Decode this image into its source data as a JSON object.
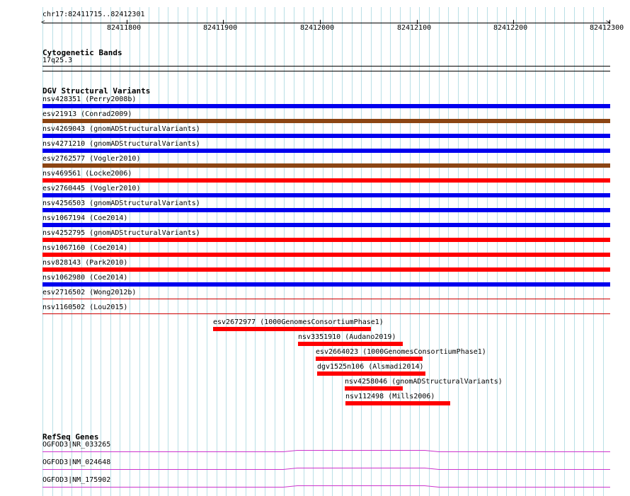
{
  "ruler": {
    "range_label": "chr17:82411715..82412301",
    "ticks": [
      "82411800",
      "82411900",
      "82412000",
      "82412100",
      "82412200",
      "82412300"
    ]
  },
  "cytoband": {
    "title": "Cytogenetic Bands",
    "band": "17q25.3"
  },
  "dgv": {
    "title": "DGV Structural Variants",
    "full_width": [
      {
        "label": "nsv428351 (Perry2008b)",
        "color": "#0000ee"
      },
      {
        "label": "esv21913 (Conrad2009)",
        "color": "#8b4513"
      },
      {
        "label": "nsv4269043 (gnomADStructuralVariants)",
        "color": "#0000ee"
      },
      {
        "label": "nsv4271210 (gnomADStructuralVariants)",
        "color": "#0000ee"
      },
      {
        "label": "esv2762577 (Vogler2010)",
        "color": "#8b4513"
      },
      {
        "label": "nsv469561 (Locke2006)",
        "color": "#ff0000"
      },
      {
        "label": "esv2760445 (Vogler2010)",
        "color": "#0000ee"
      },
      {
        "label": "nsv4256503 (gnomADStructuralVariants)",
        "color": "#0000ee"
      },
      {
        "label": "nsv1067194 (Coe2014)",
        "color": "#0000ee"
      },
      {
        "label": "nsv4252795 (gnomADStructuralVariants)",
        "color": "#ff0000"
      },
      {
        "label": "nsv1067160 (Coe2014)",
        "color": "#ff0000"
      },
      {
        "label": "nsv828143 (Park2010)",
        "color": "#ff0000"
      },
      {
        "label": "nsv1062980 (Coe2014)",
        "color": "#0000ee"
      },
      {
        "label": "esv2716502 (Wong2012b)",
        "color": "#cc0000"
      },
      {
        "label": "nsv1160502 (Lou2015)",
        "color": "#cc0000"
      }
    ],
    "partial": [
      {
        "label": "esv2672977 (1000GenomesConsortiumPhase1)",
        "color": "#ff0000"
      },
      {
        "label": "nsv3351910 (Audano2019)",
        "color": "#ff0000"
      },
      {
        "label": "esv2664023 (1000GenomesConsortiumPhase1)",
        "color": "#ff0000"
      },
      {
        "label": "dgv1525n106 (Alsmadi2014)",
        "color": "#ff0000"
      },
      {
        "label": "nsv4258046 (gnomADStructuralVariants)",
        "color": "#ff0000"
      },
      {
        "label": "nsv112498 (Mills2006)",
        "color": "#ff0000"
      }
    ]
  },
  "refseq": {
    "title": "RefSeq Genes",
    "genes": [
      {
        "label": "OGFOD3|NR_033265",
        "color": "#cc33cc"
      },
      {
        "label": "OGFOD3|NM_024648",
        "color": "#cc33cc"
      },
      {
        "label": "OGFOD3|NM_175902",
        "color": "#cc33cc"
      }
    ]
  }
}
